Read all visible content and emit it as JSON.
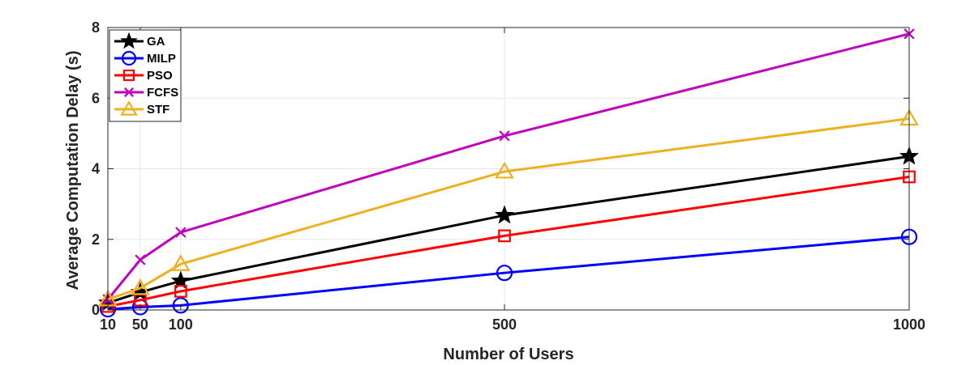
{
  "chart_data": {
    "type": "line",
    "title": "",
    "xlabel": "Number of Users",
    "ylabel": "Average Computation Delay (s)",
    "x": [
      10,
      50,
      100,
      500,
      1000
    ],
    "x_tick_labels": [
      "10",
      "50",
      "100",
      "500",
      "1000"
    ],
    "xlim": [
      10,
      1000
    ],
    "ylim": [
      0,
      8
    ],
    "y_ticks": [
      0,
      2,
      4,
      6,
      8
    ],
    "y_tick_labels": [
      "0",
      "2",
      "4",
      "6",
      "8"
    ],
    "grid": true,
    "legend_position": "top-left",
    "series": [
      {
        "name": "GA",
        "color": "#000000",
        "marker": "star",
        "values": [
          0.2,
          0.5,
          0.82,
          2.68,
          4.35
        ]
      },
      {
        "name": "MILP",
        "color": "#0000ff",
        "marker": "circle",
        "values": [
          0.02,
          0.08,
          0.13,
          1.05,
          2.07
        ]
      },
      {
        "name": "PSO",
        "color": "#ff0000",
        "marker": "square",
        "values": [
          0.1,
          0.28,
          0.53,
          2.1,
          3.77
        ]
      },
      {
        "name": "FCFS",
        "color": "#bf00bf",
        "marker": "x",
        "values": [
          0.3,
          1.42,
          2.2,
          4.93,
          7.82
        ]
      },
      {
        "name": "STF",
        "color": "#edb120",
        "marker": "triangle",
        "values": [
          0.3,
          0.62,
          1.3,
          3.92,
          5.42
        ]
      }
    ]
  }
}
